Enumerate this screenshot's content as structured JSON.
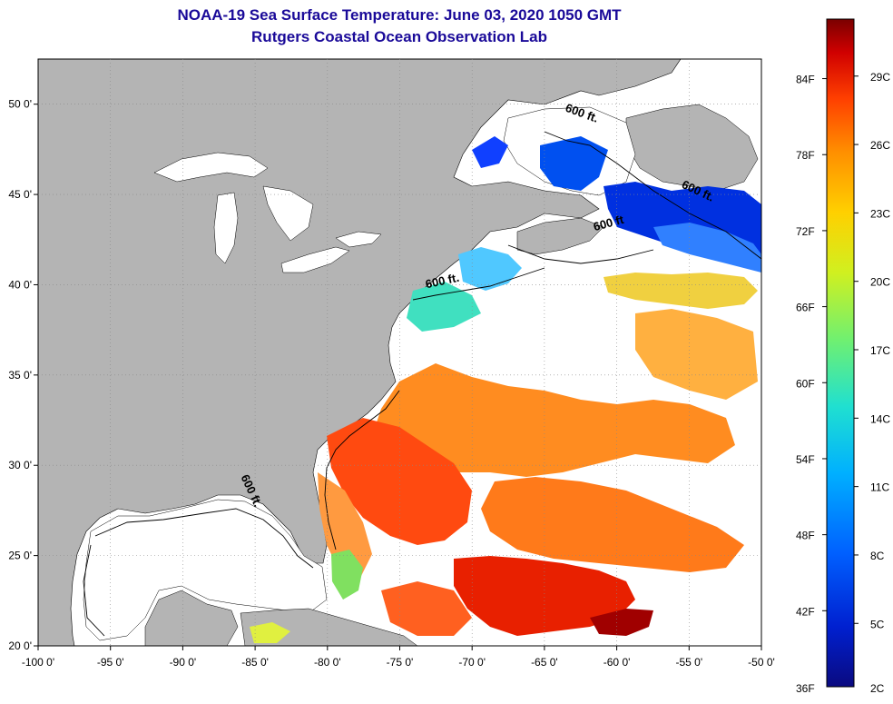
{
  "title": "NOAA-19 Sea Surface Temperature:  June 03, 2020 1050 GMT",
  "subtitle": "Rutgers Coastal Ocean Observation Lab",
  "lon_labels": [
    "-100 0'",
    "-95 0'",
    "-90 0'",
    "-85 0'",
    "-80 0'",
    "-75 0'",
    "-70 0'",
    "-65 0'",
    "-60 0'",
    "-55 0'",
    "-50 0'"
  ],
  "lon_values": [
    -100,
    -95,
    -90,
    -85,
    -80,
    -75,
    -70,
    -65,
    -60,
    -55,
    -50
  ],
  "lat_labels": [
    "20 0'",
    "25 0'",
    "30 0'",
    "35 0'",
    "40 0'",
    "45 0'",
    "50 0'"
  ],
  "lat_values": [
    20,
    25,
    30,
    35,
    40,
    45,
    50
  ],
  "map_extent": {
    "lon": [
      -100,
      -50
    ],
    "lat": [
      20,
      52.5
    ]
  },
  "contour_labels": [
    "600 ft.",
    "600 ft.",
    "600 ft",
    "600 ft.",
    "600 ft."
  ],
  "colorbar": {
    "f_labels": [
      "36F",
      "42F",
      "48F",
      "54F",
      "60F",
      "66F",
      "72F",
      "78F",
      "84F"
    ],
    "c_labels": [
      "2C",
      "5C",
      "8C",
      "11C",
      "14C",
      "17C",
      "20C",
      "23C",
      "26C",
      "29C"
    ],
    "colors": [
      "#0a0a80",
      "#0020d0",
      "#0060ff",
      "#00b0ff",
      "#20e0d0",
      "#70f070",
      "#d0f020",
      "#ffd000",
      "#ff9000",
      "#ff4000",
      "#d00000",
      "#7a0000"
    ]
  },
  "colors": {
    "land": "#b4b4b4",
    "water": "#ffffff",
    "title": "#1a0a99"
  }
}
